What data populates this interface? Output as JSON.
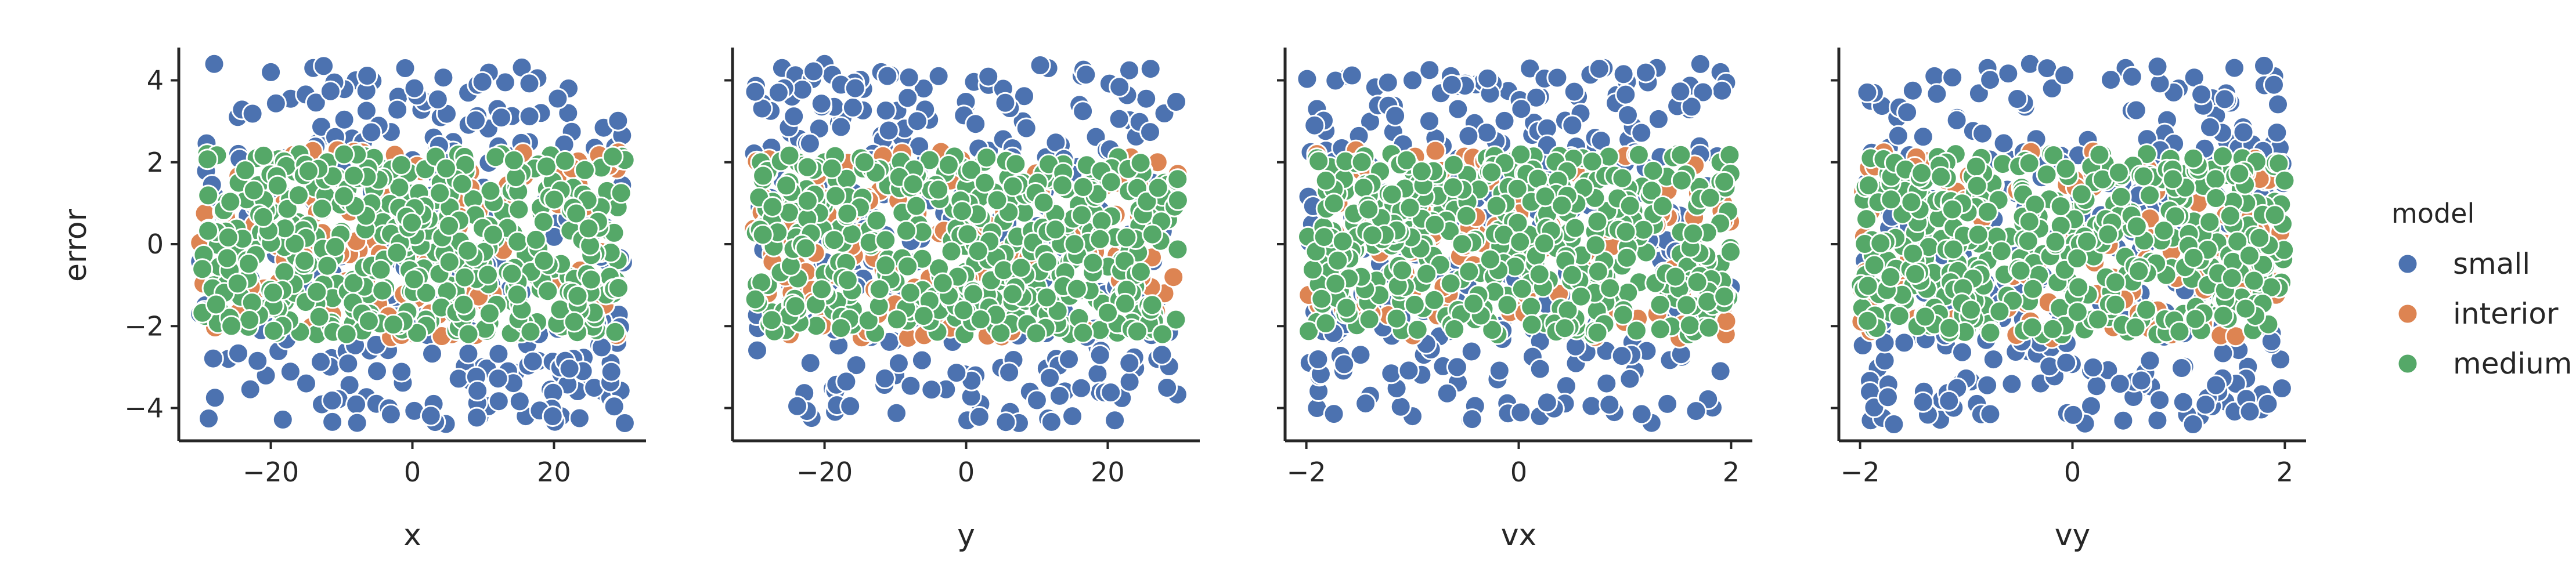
{
  "chart_data": {
    "type": "scatter",
    "layout": "1x4 facet grid, shared y axis",
    "ylabel": "error",
    "ylim": [
      -4.8,
      4.8
    ],
    "yticks": [
      -4,
      -2,
      0,
      2,
      4
    ],
    "ytick_labels": [
      "−4",
      "−2",
      "0",
      "2",
      "4"
    ],
    "grid": false,
    "legend": {
      "title": "model",
      "placement": "right",
      "entries": [
        {
          "label": "small",
          "color": "#4c72b0"
        },
        {
          "label": "interior",
          "color": "#dd8452"
        },
        {
          "label": "medium",
          "color": "#55a868"
        }
      ]
    },
    "series_note": "small: errors roughly uniform in [-4.4, 4.4]; interior and medium: errors roughly in [-2.3, 2.3]; medium points drawn last and cover most interior points",
    "panels": [
      {
        "xlabel": "x",
        "xlim": [
          -33,
          33
        ],
        "xticks": [
          -20,
          0,
          20
        ],
        "xtick_labels": [
          "−20",
          "0",
          "20"
        ],
        "xrange": [
          -30,
          30
        ],
        "sample_points": {
          "small": [
            [
              -28,
              4.4
            ],
            [
              -20,
              4.2
            ],
            [
              -14,
              4.3
            ],
            [
              -8,
              4.0
            ],
            [
              -2,
              3.6
            ],
            [
              4,
              3.1
            ],
            [
              12,
              3.3
            ],
            [
              22,
              3.2
            ],
            [
              29,
              2.9
            ],
            [
              -30,
              -1.7
            ],
            [
              -26,
              -2.8
            ],
            [
              -15,
              -3.4
            ],
            [
              -5,
              -3.1
            ],
            [
              3,
              -3.9
            ],
            [
              10,
              -3.0
            ],
            [
              16,
              -4.2
            ],
            [
              21,
              -4.2
            ],
            [
              27,
              -3.6
            ],
            [
              28,
              -2.9
            ]
          ],
          "interior": [
            [
              -18,
              -1.4
            ],
            [
              -24,
              1.5
            ],
            [
              8,
              -1.5
            ],
            [
              29,
              1.2
            ],
            [
              2,
              0.6
            ]
          ],
          "medium": [
            [
              -29,
              2.2
            ],
            [
              -22,
              2.1
            ],
            [
              -12,
              2.0
            ],
            [
              -4,
              1.6
            ],
            [
              4,
              1.5
            ],
            [
              14,
              1.3
            ],
            [
              24,
              1.2
            ],
            [
              29,
              0.9
            ],
            [
              -28,
              -1.0
            ],
            [
              -18,
              -1.4
            ],
            [
              -6,
              -1.7
            ],
            [
              6,
              -1.7
            ],
            [
              16,
              -2.0
            ],
            [
              26,
              -2.1
            ],
            [
              -10,
              0.3
            ],
            [
              10,
              -0.5
            ],
            [
              20,
              -0.6
            ],
            [
              -20,
              0.8
            ]
          ]
        }
      },
      {
        "xlabel": "y",
        "xlim": [
          -33,
          33
        ],
        "xticks": [
          -20,
          0,
          20
        ],
        "xtick_labels": [
          "−20",
          "0",
          "20"
        ],
        "xrange": [
          -30,
          30
        ],
        "sample_points": {
          "small": [
            [
              -26,
              4.3
            ],
            [
              -20,
              4.4
            ],
            [
              -12,
              4.2
            ],
            [
              -6,
              3.8
            ],
            [
              0,
              3.4
            ],
            [
              8,
              3.0
            ],
            [
              16,
              3.4
            ],
            [
              28,
              3.2
            ],
            [
              -29,
              -2.0
            ],
            [
              -22,
              -2.9
            ],
            [
              -10,
              -3.2
            ],
            [
              2,
              -3.9
            ],
            [
              9,
              -3.6
            ],
            [
              15,
              -4.2
            ],
            [
              21,
              -4.3
            ],
            [
              27,
              -2.8
            ]
          ],
          "interior": [
            [
              -28,
              -1.2
            ],
            [
              -24,
              -0.5
            ],
            [
              10,
              1.6
            ],
            [
              28,
              -1.2
            ]
          ],
          "medium": [
            [
              -29,
              2.0
            ],
            [
              -20,
              2.0
            ],
            [
              -10,
              1.8
            ],
            [
              0,
              1.4
            ],
            [
              8,
              1.5
            ],
            [
              18,
              1.6
            ],
            [
              28,
              1.5
            ],
            [
              -28,
              -1.0
            ],
            [
              -16,
              -1.6
            ],
            [
              -4,
              -1.6
            ],
            [
              6,
              -1.9
            ],
            [
              14,
              -2.0
            ],
            [
              26,
              -2.1
            ],
            [
              -22,
              0.5
            ],
            [
              -2,
              0.1
            ],
            [
              22,
              -0.4
            ]
          ]
        }
      },
      {
        "xlabel": "vx",
        "xlim": [
          -2.2,
          2.2
        ],
        "xticks": [
          -2,
          0,
          2
        ],
        "xtick_labels": [
          "−2",
          "0",
          "2"
        ],
        "xrange": [
          -2,
          2
        ],
        "sample_points": {
          "small": [
            [
              -1.9,
              3.3
            ],
            [
              -1.6,
              4.1
            ],
            [
              -1.0,
              4.0
            ],
            [
              -0.4,
              3.9
            ],
            [
              0.2,
              3.6
            ],
            [
              0.8,
              4.3
            ],
            [
              1.3,
              4.3
            ],
            [
              1.9,
              4.2
            ],
            [
              -1.9,
              -4.0
            ],
            [
              -1.4,
              -3.7
            ],
            [
              -1.0,
              -4.2
            ],
            [
              -0.2,
              -3.3
            ],
            [
              0.2,
              -4.2
            ],
            [
              0.9,
              -4.1
            ],
            [
              1.4,
              -3.9
            ],
            [
              1.9,
              -3.1
            ]
          ],
          "interior": [
            [
              -1.9,
              2.2
            ],
            [
              -0.5,
              2.1
            ],
            [
              1.0,
              -1.9
            ],
            [
              1.95,
              -2.2
            ]
          ],
          "medium": [
            [
              -1.9,
              2.1
            ],
            [
              -1.2,
              2.2
            ],
            [
              -0.3,
              2.1
            ],
            [
              0.6,
              2.1
            ],
            [
              1.5,
              2.2
            ],
            [
              1.9,
              2.0
            ],
            [
              -1.9,
              -1.9
            ],
            [
              -1.1,
              -2.1
            ],
            [
              -0.2,
              -2.2
            ],
            [
              0.7,
              -2.2
            ],
            [
              1.6,
              -2.2
            ],
            [
              -1.5,
              0.0
            ],
            [
              0.0,
              0.3
            ],
            [
              1.2,
              -0.2
            ]
          ]
        }
      },
      {
        "xlabel": "vy",
        "xlim": [
          -2.2,
          2.2
        ],
        "xticks": [
          -2,
          0,
          2
        ],
        "xtick_labels": [
          "−2",
          "0",
          "2"
        ],
        "xrange": [
          -2,
          2
        ],
        "sample_points": {
          "small": [
            [
              -1.9,
              3.5
            ],
            [
              -1.3,
              4.1
            ],
            [
              -0.8,
              4.3
            ],
            [
              -0.4,
              4.4
            ],
            [
              0.5,
              4.3
            ],
            [
              1.0,
              3.8
            ],
            [
              1.9,
              4.1
            ],
            [
              -1.9,
              -4.3
            ],
            [
              -1.4,
              -3.6
            ],
            [
              -0.9,
              -3.9
            ],
            [
              -0.3,
              -3.4
            ],
            [
              0.6,
              -3.6
            ],
            [
              0.8,
              -4.3
            ],
            [
              1.2,
              -4.2
            ],
            [
              1.8,
              -3.9
            ]
          ],
          "interior": [
            [
              -1.0,
              -1.3
            ],
            [
              0.3,
              1.9
            ],
            [
              1.9,
              1.6
            ],
            [
              -1.9,
              0.8
            ]
          ],
          "medium": [
            [
              -1.9,
              2.1
            ],
            [
              -1.1,
              2.2
            ],
            [
              -0.2,
              2.2
            ],
            [
              0.7,
              2.2
            ],
            [
              1.6,
              2.1
            ],
            [
              1.9,
              1.9
            ],
            [
              -1.9,
              -1.8
            ],
            [
              -1.0,
              -2.1
            ],
            [
              -0.1,
              -2.2
            ],
            [
              0.8,
              -2.2
            ],
            [
              1.7,
              -2.1
            ],
            [
              -1.4,
              0.2
            ],
            [
              0.2,
              -0.3
            ],
            [
              1.3,
              0.4
            ]
          ]
        }
      }
    ]
  }
}
